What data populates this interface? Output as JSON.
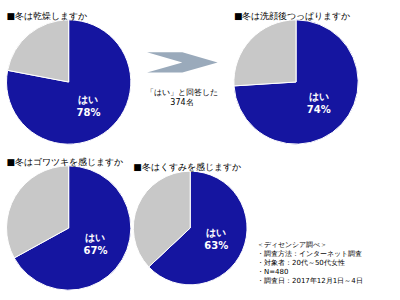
{
  "chart_data": [
    {
      "type": "pie",
      "title": "■冬は乾燥しますか",
      "categories": [
        "はい",
        null
      ],
      "values": [
        78,
        22
      ],
      "value_labels": [
        "78%",
        null
      ],
      "colors": [
        "#1515a0",
        "#c8c8c8"
      ],
      "data_labels": true
    },
    {
      "type": "pie",
      "title": "■冬は洗顔後つっぱりますか",
      "categories": [
        "はい",
        null
      ],
      "values": [
        74,
        26
      ],
      "value_labels": [
        "74%",
        null
      ],
      "colors": [
        "#1515a0",
        "#c8c8c8"
      ],
      "data_labels": true
    },
    {
      "type": "pie",
      "title": "■冬はゴワツキを感じますか",
      "categories": [
        "はい",
        null
      ],
      "values": [
        67,
        33
      ],
      "value_labels": [
        "67%",
        null
      ],
      "colors": [
        "#1515a0",
        "#c8c8c8"
      ],
      "data_labels": true
    },
    {
      "type": "pie",
      "title": "■冬はくすみを感じますか",
      "categories": [
        "はい",
        null
      ],
      "values": [
        63,
        37
      ],
      "value_labels": [
        "63%",
        null
      ],
      "colors": [
        "#1515a0",
        "#c8c8c8"
      ],
      "data_labels": true
    }
  ],
  "annotations": [
    {
      "type": "arrow",
      "color": "#9aaabb",
      "lines": [
        "「はい」と回答した",
        "374名"
      ]
    },
    {
      "lines": [
        "＜ディセンシア調べ＞",
        "・調査方法：インターネット調査",
        "・対象者：20代～50代女性",
        "・N=480",
        "・調査日：2017年12月1日～4日"
      ]
    }
  ]
}
